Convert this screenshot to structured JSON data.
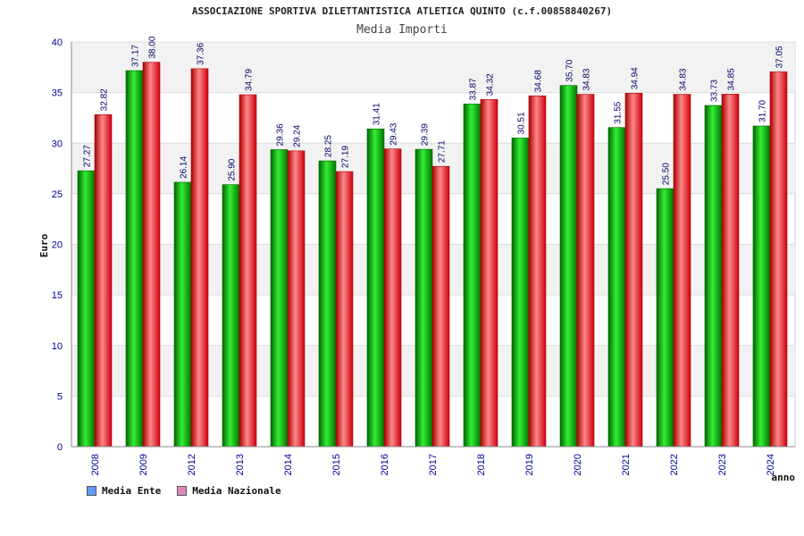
{
  "chart_data": {
    "type": "bar",
    "title": "ASSOCIAZIONE SPORTIVA DILETTANTISTICA ATLETICA QUINTO (c.f.00858840267)",
    "subtitle": "Media Importi",
    "xlabel": "anno",
    "ylabel": "Euro",
    "ylim": [
      0,
      40
    ],
    "yticks": [
      0,
      5,
      10,
      15,
      20,
      25,
      30,
      35,
      40
    ],
    "grid": true,
    "legend_position": "bottom-left",
    "categories": [
      "2008",
      "2009",
      "2012",
      "2013",
      "2014",
      "2015",
      "2016",
      "2017",
      "2018",
      "2019",
      "2020",
      "2021",
      "2022",
      "2023",
      "2024"
    ],
    "series": [
      {
        "name": "Media Ente",
        "color": "#00aa00",
        "legend_color": "#6699ff",
        "values": [
          27.27,
          37.17,
          26.14,
          25.9,
          29.36,
          28.25,
          31.41,
          29.39,
          33.87,
          30.51,
          35.7,
          31.55,
          25.5,
          33.73,
          31.7
        ],
        "labels": [
          "27.27",
          "37.17",
          "26.14",
          "25.90",
          "29.36",
          "28.25",
          "31.41",
          "29.39",
          "33.87",
          "30.51",
          "35.70",
          "31.55",
          "25.50",
          "33.73",
          "31.70"
        ]
      },
      {
        "name": "Media Nazionale",
        "color": "#ee1122",
        "legend_color": "#dd88bb",
        "values": [
          32.82,
          38.0,
          37.36,
          34.79,
          29.24,
          27.19,
          29.43,
          27.71,
          34.32,
          34.68,
          34.83,
          34.94,
          34.83,
          34.85,
          37.05
        ],
        "labels": [
          "32.82",
          "38.00",
          "37.36",
          "34.79",
          "29.24",
          "27.19",
          "29.43",
          "27.71",
          "34.32",
          "34.68",
          "34.83",
          "34.94",
          "34.83",
          "34.85",
          "37.05"
        ]
      }
    ]
  }
}
